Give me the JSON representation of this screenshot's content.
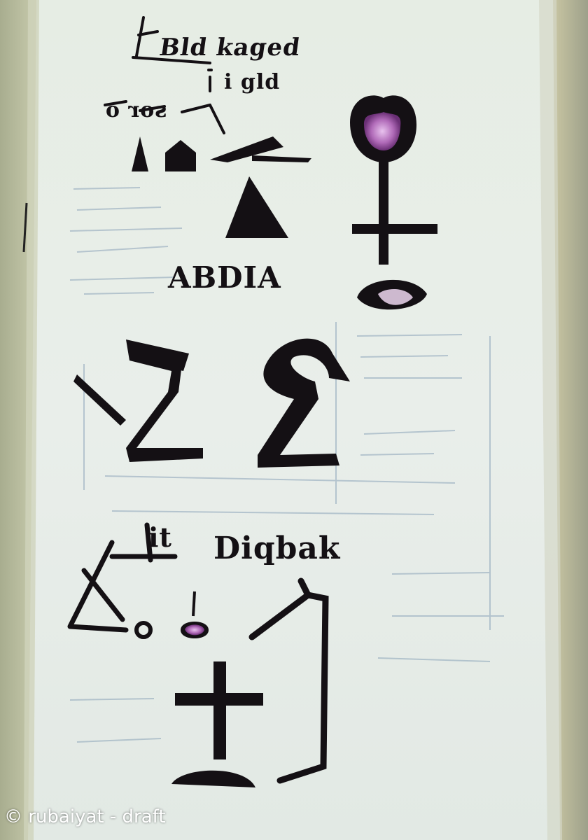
{
  "image": {
    "description_labels": {
      "scribble_title": "Bld kaged",
      "scribble_line2": "i gld",
      "scribble_line3": "sor o",
      "mirror_word": "ABDIA",
      "lower_word": "Diqbak",
      "small_word": "it"
    }
  },
  "watermark": {
    "text": "© rubaiyat - draft"
  },
  "colors": {
    "paper": "#e4ebe3",
    "ink": "#141014",
    "accent_purple": "#b06ab8",
    "faint_ink": "#8aa3b8",
    "wall": "#b9bfa4"
  },
  "icons": [
    "venus-cross-symbol",
    "triangle-symbol",
    "gem-symbol"
  ]
}
